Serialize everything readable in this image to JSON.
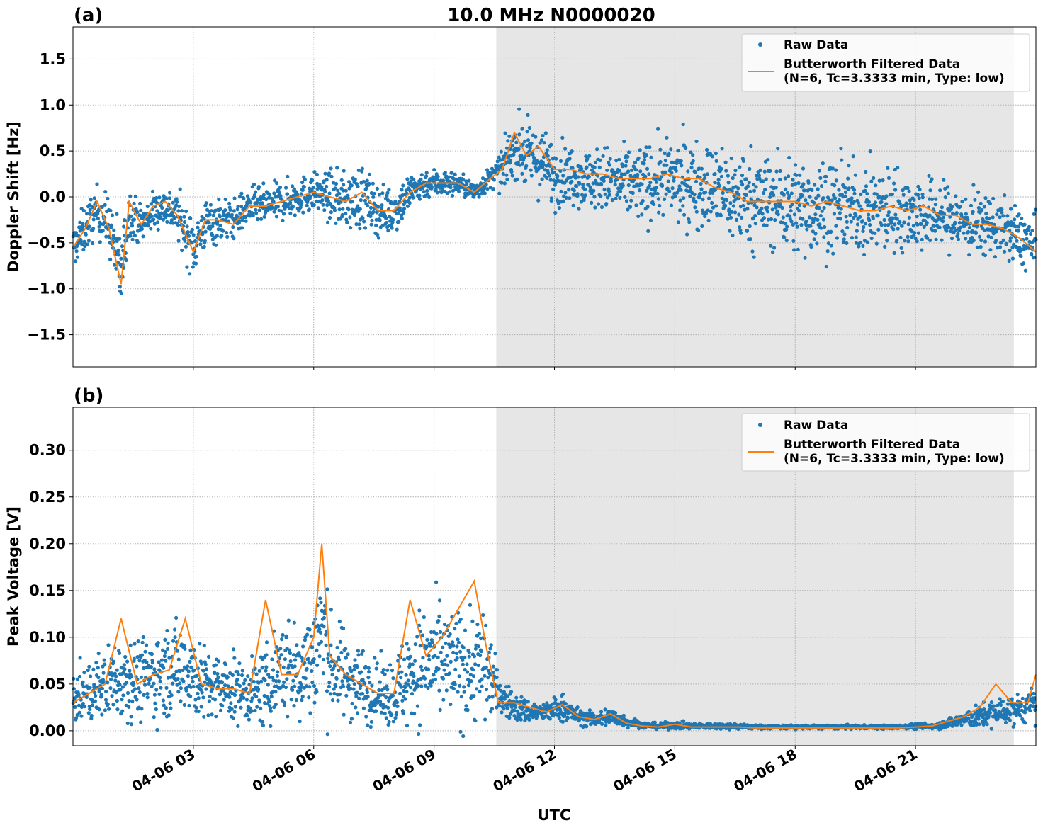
{
  "figure": {
    "title": "10.0 MHz N0000020",
    "xlabel": "UTC",
    "x_ticks": [
      "04-06 03",
      "04-06 06",
      "04-06 09",
      "04-06 12",
      "04-06 15",
      "04-06 18",
      "04-06 21"
    ]
  },
  "colors": {
    "raw": "#1f77b4",
    "filtered": "#ff7f0e",
    "night_shade": "#e6e6e6",
    "grid": "#b0b0b0"
  },
  "chart_data": [
    {
      "type": "scatter",
      "panel_label": "(a)",
      "ylabel": "Doppler Shift [Hz]",
      "xlim_hours_utc": [
        0.0,
        24.0
      ],
      "ylim": [
        -1.85,
        1.85
      ],
      "yticks": [
        "1.5",
        "1.0",
        "0.5",
        "0.0",
        "−0.5",
        "−1.0",
        "−1.5"
      ],
      "ytick_values": [
        1.5,
        1.0,
        0.5,
        0.0,
        -0.5,
        -1.0,
        -1.5
      ],
      "grid": true,
      "legend_position": "top-right",
      "shaded_interval_hours_utc": [
        10.55,
        23.45
      ],
      "series": [
        {
          "name": "Raw Data",
          "x_hours_utc": [
            0.0,
            0.3,
            0.6,
            0.9,
            1.2,
            1.4,
            1.7,
            2.0,
            2.3,
            2.6,
            3.0,
            3.3,
            3.6,
            4.0,
            4.4,
            4.8,
            5.2,
            5.6,
            6.0,
            6.4,
            6.8,
            7.2,
            7.6,
            8.0,
            8.4,
            8.8,
            9.2,
            9.6,
            10.0,
            10.4,
            10.7,
            11.0,
            11.3,
            11.6,
            12.0,
            12.4,
            12.8,
            13.2,
            13.6,
            14.0,
            14.4,
            14.8,
            15.2,
            15.6,
            16.0,
            16.4,
            16.8,
            17.2,
            17.6,
            18.0,
            18.4,
            18.8,
            19.2,
            19.6,
            20.0,
            20.4,
            20.8,
            21.2,
            21.6,
            22.0,
            22.4,
            22.8,
            23.2,
            23.6,
            24.0
          ],
          "y_center": [
            -0.55,
            -0.35,
            -0.15,
            -0.3,
            -0.85,
            -0.15,
            -0.3,
            -0.15,
            -0.1,
            -0.2,
            -0.55,
            -0.3,
            -0.25,
            -0.25,
            -0.1,
            -0.1,
            -0.05,
            0.0,
            0.05,
            0.0,
            -0.05,
            0.0,
            -0.15,
            -0.15,
            0.05,
            0.15,
            0.15,
            0.15,
            0.05,
            0.2,
            0.3,
            0.55,
            0.45,
            0.4,
            0.25,
            0.25,
            0.2,
            0.2,
            0.15,
            0.15,
            0.15,
            0.2,
            0.15,
            0.15,
            0.1,
            0.0,
            0.0,
            -0.05,
            -0.05,
            -0.1,
            -0.1,
            -0.1,
            -0.1,
            -0.15,
            -0.15,
            -0.15,
            -0.15,
            -0.2,
            -0.2,
            -0.25,
            -0.3,
            -0.3,
            -0.35,
            -0.45,
            -0.55
          ],
          "y_spread": [
            0.22,
            0.25,
            0.25,
            0.3,
            0.45,
            0.25,
            0.2,
            0.2,
            0.2,
            0.25,
            0.3,
            0.25,
            0.25,
            0.2,
            0.2,
            0.2,
            0.2,
            0.2,
            0.2,
            0.25,
            0.3,
            0.35,
            0.25,
            0.25,
            0.2,
            0.15,
            0.15,
            0.12,
            0.1,
            0.12,
            0.2,
            0.3,
            0.35,
            0.35,
            0.35,
            0.3,
            0.3,
            0.35,
            0.35,
            0.4,
            0.4,
            0.4,
            0.45,
            0.45,
            0.45,
            0.5,
            0.5,
            0.5,
            0.5,
            0.5,
            0.5,
            0.5,
            0.45,
            0.45,
            0.45,
            0.45,
            0.4,
            0.4,
            0.35,
            0.35,
            0.35,
            0.3,
            0.3,
            0.3,
            0.3
          ]
        },
        {
          "name": "Butterworth Filtered Data\n(N=6, Tc=3.3333 min, Type: low)",
          "x_hours_utc": [
            0.0,
            0.3,
            0.6,
            0.9,
            1.2,
            1.4,
            1.7,
            2.0,
            2.3,
            2.6,
            3.0,
            3.3,
            3.6,
            4.0,
            4.4,
            4.8,
            5.2,
            5.6,
            6.0,
            6.4,
            6.8,
            7.2,
            7.6,
            8.0,
            8.4,
            8.8,
            9.2,
            9.6,
            10.0,
            10.4,
            10.7,
            11.0,
            11.3,
            11.6,
            12.0,
            12.4,
            12.8,
            13.2,
            13.6,
            14.0,
            14.4,
            14.8,
            15.2,
            15.6,
            16.0,
            16.4,
            16.8,
            17.2,
            17.6,
            18.0,
            18.4,
            18.8,
            19.2,
            19.6,
            20.0,
            20.4,
            20.8,
            21.2,
            21.6,
            22.0,
            22.4,
            22.8,
            23.2,
            23.6,
            24.0
          ],
          "y": [
            -0.55,
            -0.35,
            -0.05,
            -0.35,
            -0.95,
            -0.05,
            -0.3,
            -0.1,
            -0.05,
            -0.2,
            -0.6,
            -0.25,
            -0.25,
            -0.3,
            -0.1,
            -0.1,
            -0.05,
            0.0,
            0.05,
            0.0,
            -0.05,
            0.05,
            -0.15,
            -0.15,
            0.05,
            0.15,
            0.15,
            0.15,
            0.05,
            0.2,
            0.3,
            0.7,
            0.45,
            0.55,
            0.3,
            0.3,
            0.25,
            0.25,
            0.2,
            0.2,
            0.2,
            0.25,
            0.2,
            0.2,
            0.1,
            0.05,
            -0.05,
            -0.05,
            -0.05,
            -0.05,
            -0.1,
            -0.05,
            -0.1,
            -0.15,
            -0.15,
            -0.1,
            -0.15,
            -0.1,
            -0.2,
            -0.2,
            -0.3,
            -0.3,
            -0.35,
            -0.45,
            -0.6
          ]
        }
      ]
    },
    {
      "type": "scatter",
      "panel_label": "(b)",
      "ylabel": "Peak Voltage [V]",
      "xlim_hours_utc": [
        0.0,
        24.0
      ],
      "ylim": [
        -0.016,
        0.346
      ],
      "yticks": [
        "0.30",
        "0.25",
        "0.20",
        "0.15",
        "0.10",
        "0.05",
        "0.00"
      ],
      "ytick_values": [
        0.3,
        0.25,
        0.2,
        0.15,
        0.1,
        0.05,
        0.0
      ],
      "grid": true,
      "legend_position": "top-right",
      "shaded_interval_hours_utc": [
        10.55,
        23.45
      ],
      "series": [
        {
          "name": "Raw Data",
          "x_hours_utc": [
            0.0,
            0.4,
            0.8,
            1.2,
            1.6,
            2.0,
            2.4,
            2.8,
            3.2,
            3.6,
            4.0,
            4.4,
            4.8,
            5.2,
            5.6,
            6.0,
            6.2,
            6.4,
            6.8,
            7.2,
            7.6,
            8.0,
            8.4,
            8.8,
            9.2,
            9.6,
            10.0,
            10.3,
            10.6,
            11.0,
            11.4,
            11.8,
            12.2,
            12.6,
            13.0,
            13.4,
            13.8,
            14.2,
            14.6,
            15.0,
            15.4,
            15.8,
            16.2,
            16.6,
            17.0,
            17.4,
            17.8,
            18.2,
            18.6,
            19.0,
            19.4,
            19.8,
            20.2,
            20.6,
            21.0,
            21.4,
            21.8,
            22.2,
            22.6,
            23.0,
            23.4,
            23.8,
            24.0
          ],
          "y_center": [
            0.035,
            0.04,
            0.05,
            0.06,
            0.055,
            0.06,
            0.065,
            0.07,
            0.05,
            0.045,
            0.045,
            0.04,
            0.045,
            0.07,
            0.06,
            0.08,
            0.11,
            0.07,
            0.06,
            0.05,
            0.04,
            0.04,
            0.06,
            0.075,
            0.07,
            0.07,
            0.07,
            0.07,
            0.04,
            0.025,
            0.02,
            0.02,
            0.025,
            0.015,
            0.012,
            0.015,
            0.01,
            0.006,
            0.005,
            0.006,
            0.005,
            0.005,
            0.005,
            0.005,
            0.004,
            0.004,
            0.004,
            0.004,
            0.004,
            0.004,
            0.004,
            0.004,
            0.004,
            0.004,
            0.005,
            0.005,
            0.008,
            0.012,
            0.015,
            0.02,
            0.022,
            0.025,
            0.03
          ],
          "y_spread": [
            0.025,
            0.03,
            0.035,
            0.045,
            0.04,
            0.045,
            0.045,
            0.05,
            0.04,
            0.035,
            0.035,
            0.03,
            0.04,
            0.055,
            0.05,
            0.06,
            0.09,
            0.05,
            0.045,
            0.04,
            0.03,
            0.035,
            0.055,
            0.06,
            0.055,
            0.06,
            0.06,
            0.06,
            0.02,
            0.015,
            0.012,
            0.01,
            0.015,
            0.008,
            0.008,
            0.01,
            0.006,
            0.003,
            0.003,
            0.004,
            0.003,
            0.003,
            0.003,
            0.003,
            0.002,
            0.002,
            0.002,
            0.002,
            0.002,
            0.002,
            0.002,
            0.002,
            0.002,
            0.002,
            0.003,
            0.003,
            0.005,
            0.008,
            0.012,
            0.015,
            0.015,
            0.015,
            0.02
          ]
        },
        {
          "name": "Butterworth Filtered Data\n(N=6, Tc=3.3333 min, Type: low)",
          "x_hours_utc": [
            0.0,
            0.4,
            0.8,
            1.2,
            1.6,
            2.0,
            2.4,
            2.8,
            3.2,
            3.6,
            4.0,
            4.4,
            4.8,
            5.2,
            5.6,
            6.0,
            6.2,
            6.4,
            6.8,
            7.2,
            7.6,
            8.0,
            8.4,
            8.8,
            9.2,
            9.6,
            10.0,
            10.3,
            10.6,
            11.0,
            11.4,
            11.8,
            12.2,
            12.6,
            13.0,
            13.4,
            13.8,
            14.2,
            14.6,
            15.0,
            15.4,
            15.8,
            16.2,
            16.6,
            17.0,
            17.4,
            17.8,
            18.2,
            18.6,
            19.0,
            19.4,
            19.8,
            20.2,
            20.6,
            21.0,
            21.4,
            21.8,
            22.2,
            22.6,
            23.0,
            23.4,
            23.8,
            24.0
          ],
          "y": [
            0.03,
            0.04,
            0.05,
            0.12,
            0.05,
            0.06,
            0.065,
            0.12,
            0.05,
            0.045,
            0.045,
            0.04,
            0.14,
            0.06,
            0.06,
            0.1,
            0.2,
            0.08,
            0.06,
            0.05,
            0.04,
            0.04,
            0.14,
            0.08,
            0.1,
            0.13,
            0.16,
            0.09,
            0.03,
            0.03,
            0.025,
            0.02,
            0.028,
            0.015,
            0.012,
            0.018,
            0.008,
            0.005,
            0.004,
            0.007,
            0.004,
            0.004,
            0.004,
            0.004,
            0.003,
            0.003,
            0.003,
            0.003,
            0.003,
            0.003,
            0.003,
            0.003,
            0.003,
            0.003,
            0.004,
            0.005,
            0.01,
            0.015,
            0.025,
            0.05,
            0.03,
            0.03,
            0.06
          ]
        }
      ]
    }
  ]
}
